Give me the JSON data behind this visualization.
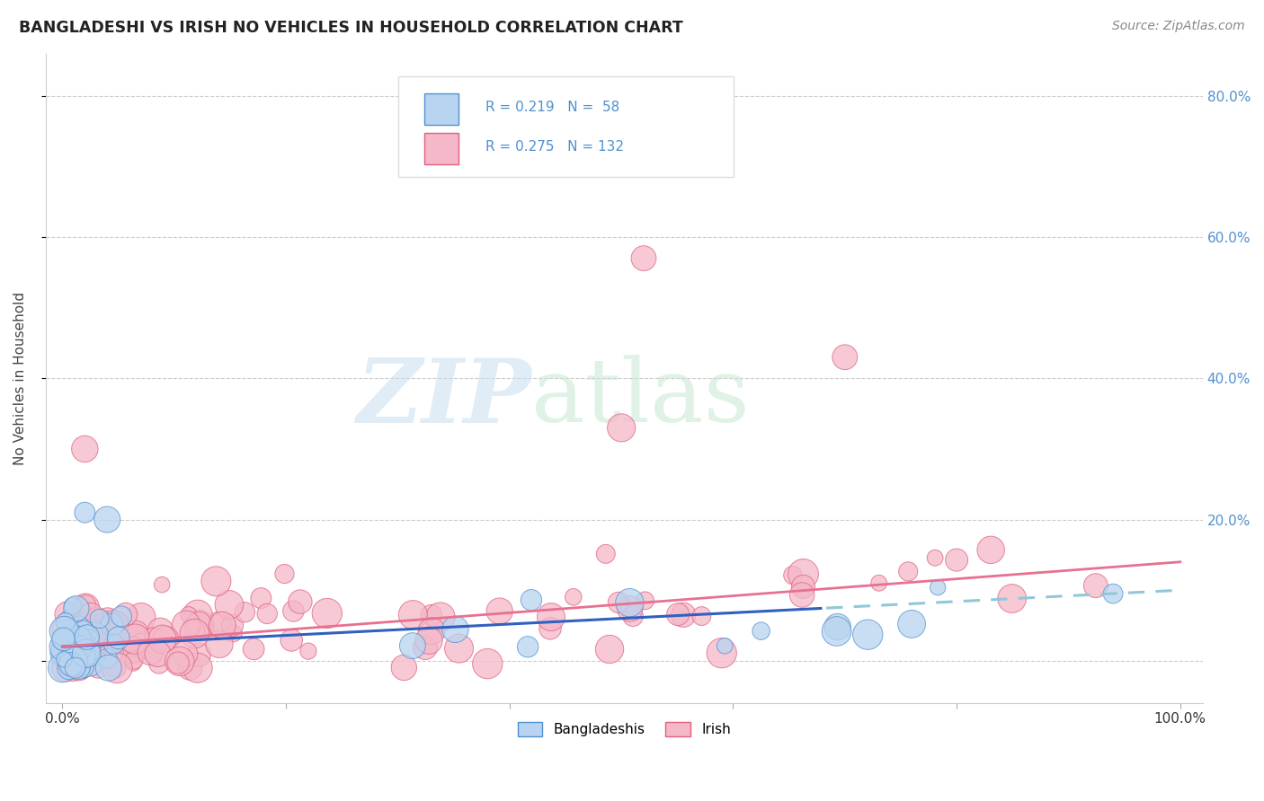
{
  "title": "BANGLADESHI VS IRISH NO VEHICLES IN HOUSEHOLD CORRELATION CHART",
  "source": "Source: ZipAtlas.com",
  "ylabel": "No Vehicles in Household",
  "background_color": "#ffffff",
  "watermark_zip": "ZIP",
  "watermark_atlas": "atlas",
  "blue_fill": "#b8d4f0",
  "blue_edge": "#5090d0",
  "pink_fill": "#f4b8c8",
  "pink_edge": "#e06080",
  "blue_line": "#3060c0",
  "pink_line": "#e87090",
  "dashed_line": "#90c8d8",
  "right_tick_color": "#5090d0",
  "legend_R_blue": "R = 0.219",
  "legend_N_blue": "N =  58",
  "legend_R_pink": "R = 0.275",
  "legend_N_pink": "N = 132",
  "ytick_vals": [
    0.0,
    0.2,
    0.4,
    0.6,
    0.8
  ],
  "ytick_labels": [
    "",
    "20.0%",
    "40.0%",
    "60.0%",
    "80.0%"
  ],
  "xtick_vals": [
    0.0,
    1.0
  ],
  "xtick_labels": [
    "0.0%",
    "100.0%"
  ]
}
